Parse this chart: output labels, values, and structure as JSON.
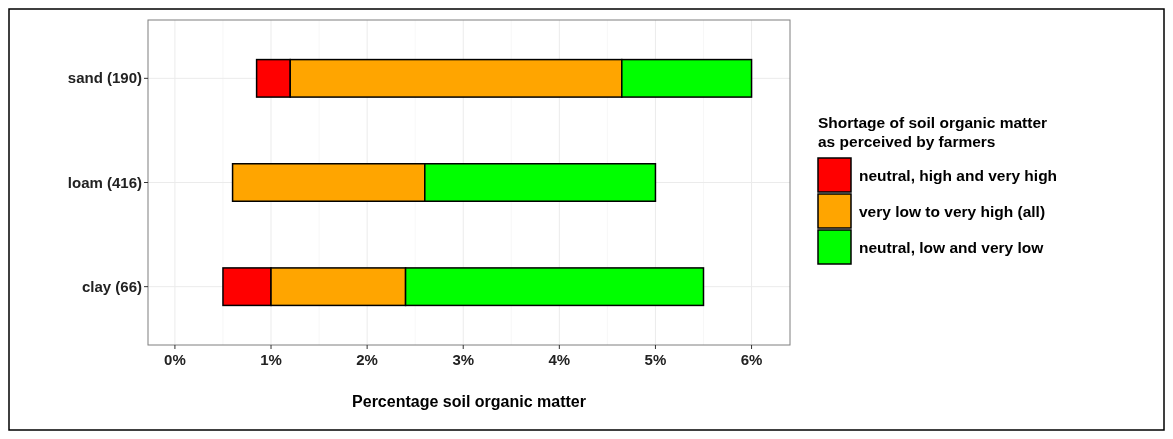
{
  "chart_data": {
    "type": "bar",
    "orientation": "horizontal",
    "categories": [
      "sand (190)",
      "loam (416)",
      "clay (66)"
    ],
    "series": [
      {
        "name": "neutral, high and very high",
        "color": "#ff0000",
        "base": [
          0.85,
          null,
          0.5
        ],
        "values": [
          0.35,
          null,
          0.5
        ]
      },
      {
        "name": "very low to very high (all)",
        "color": "#ffa500",
        "base": [
          1.2,
          0.6,
          1.0
        ],
        "values": [
          3.45,
          2.0,
          1.4
        ]
      },
      {
        "name": "neutral, low and very low",
        "color": "#00ff00",
        "base": [
          4.65,
          2.6,
          2.4
        ],
        "values": [
          1.35,
          2.4,
          3.1
        ]
      }
    ],
    "xlim": [
      -0.28,
      6.4
    ],
    "xticks": [
      {
        "value": 0,
        "label": "0%"
      },
      {
        "value": 1,
        "label": "1%"
      },
      {
        "value": 2,
        "label": "2%"
      },
      {
        "value": 3,
        "label": "3%"
      },
      {
        "value": 4,
        "label": "4%"
      },
      {
        "value": 5,
        "label": "5%"
      },
      {
        "value": 6,
        "label": "6%"
      }
    ],
    "xlabel": "Percentage soil organic matter",
    "legend_title": "Shortage of soil organic matter as perceived by farmers",
    "legend": "right",
    "grid": true
  }
}
